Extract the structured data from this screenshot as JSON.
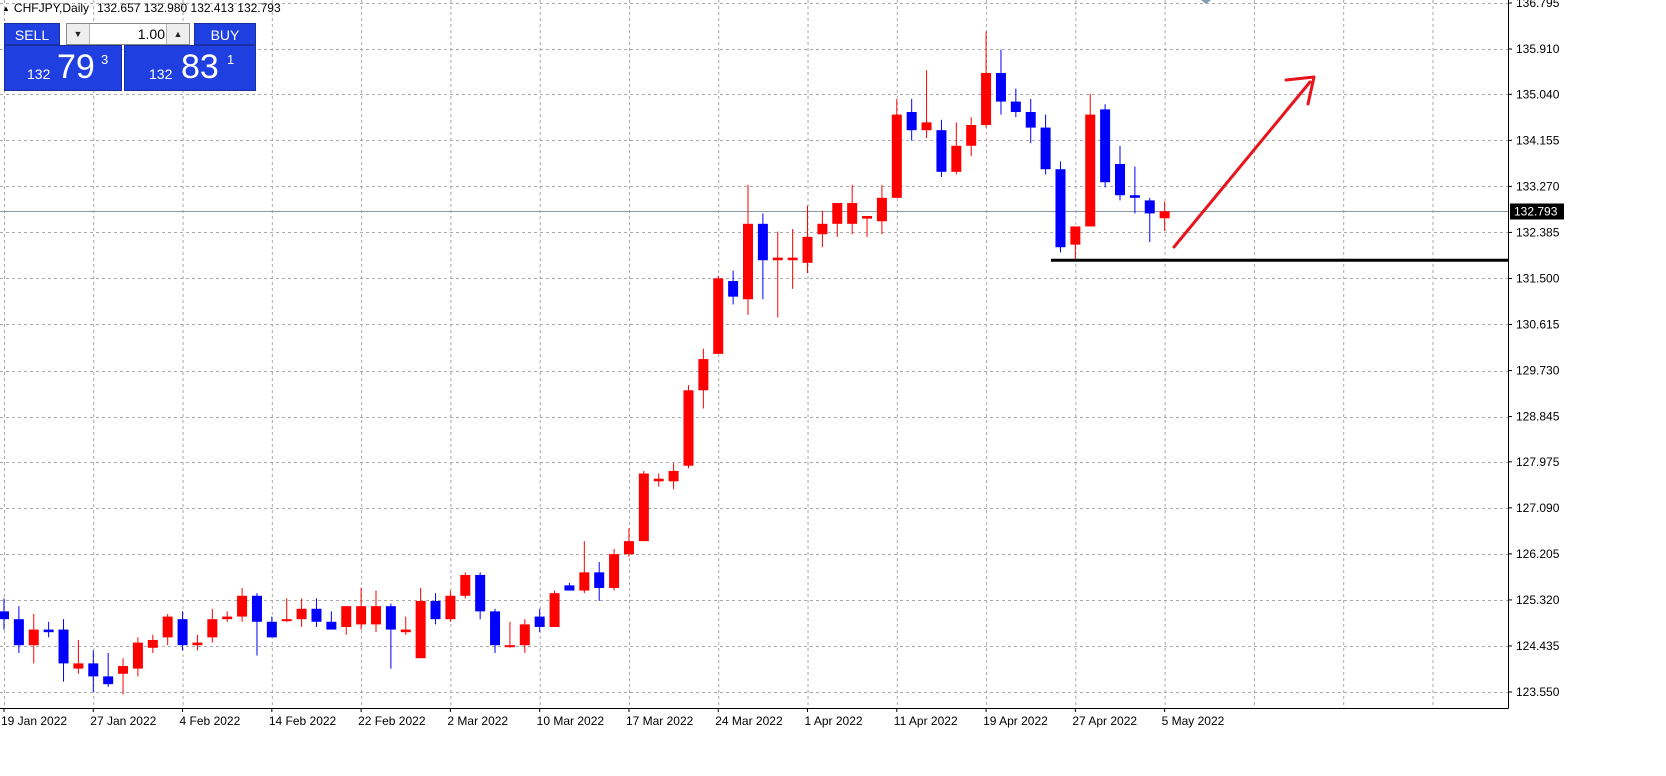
{
  "symbol_bar": {
    "symbol": "CHFJPY,Daily",
    "open": "132.657",
    "high": "132.980",
    "low": "132.413",
    "close": "132.793"
  },
  "trade_panel": {
    "sell_label": "SELL",
    "buy_label": "BUY",
    "lot_value": "1.00",
    "sell_price": {
      "prefix": "132",
      "big": "79",
      "sup": "3"
    },
    "buy_price": {
      "prefix": "132",
      "big": "83",
      "sup": "1"
    },
    "spinner_down_icon": "triangle-down",
    "spinner_up_icon": "triangle-up"
  },
  "colors": {
    "bull": "#ff0000",
    "bear": "#0000ff",
    "grid": "#a9a9a9",
    "trend_line": "#000000",
    "arrow": "#e8141c",
    "bid_line": "#8898a8",
    "price_label_bg": "#000000"
  },
  "chart_data": {
    "type": "candlestick",
    "title": "CHFJPY,Daily",
    "ylim": [
      123.1,
      136.795
    ],
    "y_ticks": [
      "123.550",
      "124.435",
      "125.320",
      "126.205",
      "127.090",
      "127.975",
      "128.845",
      "129.730",
      "130.615",
      "131.500",
      "132.385",
      "133.270",
      "134.155",
      "135.040",
      "135.910",
      "136.795"
    ],
    "x_labels": [
      {
        "label": "19 Jan 2022",
        "index": 0
      },
      {
        "label": "27 Jan 2022",
        "index": 6
      },
      {
        "label": "4 Feb 2022",
        "index": 12
      },
      {
        "label": "14 Feb 2022",
        "index": 18
      },
      {
        "label": "22 Feb 2022",
        "index": 24
      },
      {
        "label": "2 Mar 2022",
        "index": 30
      },
      {
        "label": "10 Mar 2022",
        "index": 36
      },
      {
        "label": "17 Mar 2022",
        "index": 42
      },
      {
        "label": "24 Mar 2022",
        "index": 48
      },
      {
        "label": "1 Apr 2022",
        "index": 54
      },
      {
        "label": "11 Apr 2022",
        "index": 60
      },
      {
        "label": "19 Apr 2022",
        "index": 66
      },
      {
        "label": "27 Apr 2022",
        "index": 72
      },
      {
        "label": "5 May 2022",
        "index": 78
      }
    ],
    "last_price": "132.793",
    "support_level": 131.85,
    "candles": [
      {
        "o": 125.1,
        "h": 125.35,
        "l": 124.75,
        "c": 124.95
      },
      {
        "o": 124.95,
        "h": 125.2,
        "l": 124.3,
        "c": 124.45
      },
      {
        "o": 124.45,
        "h": 125.05,
        "l": 124.1,
        "c": 124.75
      },
      {
        "o": 124.75,
        "h": 124.9,
        "l": 124.6,
        "c": 124.7
      },
      {
        "o": 124.75,
        "h": 124.95,
        "l": 123.75,
        "c": 124.1
      },
      {
        "o": 124.0,
        "h": 124.55,
        "l": 123.9,
        "c": 124.1
      },
      {
        "o": 124.1,
        "h": 124.35,
        "l": 123.55,
        "c": 123.85
      },
      {
        "o": 123.85,
        "h": 124.3,
        "l": 123.65,
        "c": 123.7
      },
      {
        "o": 123.9,
        "h": 124.2,
        "l": 123.5,
        "c": 124.05
      },
      {
        "o": 124.0,
        "h": 124.6,
        "l": 123.85,
        "c": 124.5
      },
      {
        "o": 124.4,
        "h": 124.65,
        "l": 124.3,
        "c": 124.55
      },
      {
        "o": 124.6,
        "h": 125.05,
        "l": 124.45,
        "c": 125.0
      },
      {
        "o": 124.95,
        "h": 125.1,
        "l": 124.35,
        "c": 124.45
      },
      {
        "o": 124.45,
        "h": 124.65,
        "l": 124.35,
        "c": 124.5
      },
      {
        "o": 124.6,
        "h": 125.15,
        "l": 124.5,
        "c": 124.95
      },
      {
        "o": 124.95,
        "h": 125.1,
        "l": 124.9,
        "c": 125.0
      },
      {
        "o": 125.0,
        "h": 125.55,
        "l": 124.9,
        "c": 125.4
      },
      {
        "o": 125.4,
        "h": 125.45,
        "l": 124.25,
        "c": 124.9
      },
      {
        "o": 124.9,
        "h": 125.0,
        "l": 124.6,
        "c": 124.6
      },
      {
        "o": 124.95,
        "h": 125.35,
        "l": 124.9,
        "c": 124.95
      },
      {
        "o": 124.95,
        "h": 125.35,
        "l": 124.8,
        "c": 125.15
      },
      {
        "o": 125.15,
        "h": 125.35,
        "l": 124.8,
        "c": 124.9
      },
      {
        "o": 124.9,
        "h": 125.1,
        "l": 124.75,
        "c": 124.75
      },
      {
        "o": 124.8,
        "h": 125.2,
        "l": 124.65,
        "c": 125.2
      },
      {
        "o": 124.85,
        "h": 125.55,
        "l": 124.75,
        "c": 125.2
      },
      {
        "o": 124.85,
        "h": 125.5,
        "l": 124.7,
        "c": 125.2
      },
      {
        "o": 125.2,
        "h": 125.25,
        "l": 124.0,
        "c": 124.75
      },
      {
        "o": 124.7,
        "h": 125.0,
        "l": 124.65,
        "c": 124.75
      },
      {
        "o": 124.2,
        "h": 125.55,
        "l": 124.2,
        "c": 125.3
      },
      {
        "o": 125.3,
        "h": 125.45,
        "l": 124.85,
        "c": 124.95
      },
      {
        "o": 124.95,
        "h": 125.5,
        "l": 124.9,
        "c": 125.4
      },
      {
        "o": 125.4,
        "h": 125.85,
        "l": 125.35,
        "c": 125.8
      },
      {
        "o": 125.8,
        "h": 125.85,
        "l": 124.95,
        "c": 125.1
      },
      {
        "o": 125.1,
        "h": 125.15,
        "l": 124.3,
        "c": 124.45
      },
      {
        "o": 124.45,
        "h": 124.9,
        "l": 124.4,
        "c": 124.45
      },
      {
        "o": 124.45,
        "h": 124.95,
        "l": 124.3,
        "c": 124.85
      },
      {
        "o": 125.0,
        "h": 125.15,
        "l": 124.7,
        "c": 124.8
      },
      {
        "o": 124.8,
        "h": 125.5,
        "l": 124.8,
        "c": 125.45
      },
      {
        "o": 125.6,
        "h": 125.65,
        "l": 125.5,
        "c": 125.5
      },
      {
        "o": 125.5,
        "h": 126.45,
        "l": 125.45,
        "c": 125.85
      },
      {
        "o": 125.85,
        "h": 126.05,
        "l": 125.3,
        "c": 125.55
      },
      {
        "o": 125.55,
        "h": 126.3,
        "l": 125.5,
        "c": 126.2
      },
      {
        "o": 126.2,
        "h": 126.7,
        "l": 126.15,
        "c": 126.45
      },
      {
        "o": 126.45,
        "h": 127.8,
        "l": 126.45,
        "c": 127.75
      },
      {
        "o": 127.6,
        "h": 127.75,
        "l": 127.5,
        "c": 127.65
      },
      {
        "o": 127.6,
        "h": 127.95,
        "l": 127.45,
        "c": 127.8
      },
      {
        "o": 127.9,
        "h": 129.45,
        "l": 127.85,
        "c": 129.35
      },
      {
        "o": 129.35,
        "h": 130.15,
        "l": 129.0,
        "c": 129.95
      },
      {
        "o": 130.05,
        "h": 131.55,
        "l": 130.05,
        "c": 131.5
      },
      {
        "o": 131.45,
        "h": 131.65,
        "l": 131.0,
        "c": 131.15
      },
      {
        "o": 131.1,
        "h": 133.3,
        "l": 130.8,
        "c": 132.55
      },
      {
        "o": 132.55,
        "h": 132.75,
        "l": 131.1,
        "c": 131.85
      },
      {
        "o": 131.85,
        "h": 132.4,
        "l": 130.75,
        "c": 131.9
      },
      {
        "o": 131.85,
        "h": 132.45,
        "l": 131.3,
        "c": 131.9
      },
      {
        "o": 131.8,
        "h": 132.9,
        "l": 131.6,
        "c": 132.3
      },
      {
        "o": 132.35,
        "h": 132.8,
        "l": 132.1,
        "c": 132.55
      },
      {
        "o": 132.55,
        "h": 132.9,
        "l": 132.3,
        "c": 132.95
      },
      {
        "o": 132.55,
        "h": 133.3,
        "l": 132.35,
        "c": 132.95
      },
      {
        "o": 132.65,
        "h": 132.7,
        "l": 132.3,
        "c": 132.7
      },
      {
        "o": 132.6,
        "h": 133.3,
        "l": 132.35,
        "c": 133.05
      },
      {
        "o": 133.05,
        "h": 134.95,
        "l": 133.05,
        "c": 134.65
      },
      {
        "o": 134.7,
        "h": 134.95,
        "l": 134.15,
        "c": 134.35
      },
      {
        "o": 134.35,
        "h": 135.5,
        "l": 134.2,
        "c": 134.5
      },
      {
        "o": 134.35,
        "h": 134.55,
        "l": 133.45,
        "c": 133.55
      },
      {
        "o": 133.55,
        "h": 134.5,
        "l": 133.5,
        "c": 134.05
      },
      {
        "o": 134.05,
        "h": 134.6,
        "l": 133.85,
        "c": 134.45
      },
      {
        "o": 134.45,
        "h": 136.25,
        "l": 134.4,
        "c": 135.45
      },
      {
        "o": 135.45,
        "h": 135.9,
        "l": 134.65,
        "c": 134.9
      },
      {
        "o": 134.9,
        "h": 135.15,
        "l": 134.6,
        "c": 134.7
      },
      {
        "o": 134.7,
        "h": 134.95,
        "l": 134.1,
        "c": 134.4
      },
      {
        "o": 134.4,
        "h": 134.65,
        "l": 133.5,
        "c": 133.6
      },
      {
        "o": 133.6,
        "h": 133.75,
        "l": 132.0,
        "c": 132.1
      },
      {
        "o": 132.15,
        "h": 132.5,
        "l": 131.85,
        "c": 132.5
      },
      {
        "o": 132.5,
        "h": 135.05,
        "l": 132.5,
        "c": 134.65
      },
      {
        "o": 134.75,
        "h": 134.85,
        "l": 133.25,
        "c": 133.35
      },
      {
        "o": 133.7,
        "h": 134.05,
        "l": 133.0,
        "c": 133.1
      },
      {
        "o": 133.1,
        "h": 133.65,
        "l": 132.75,
        "c": 133.05
      },
      {
        "o": 133.0,
        "h": 133.05,
        "l": 132.2,
        "c": 132.75
      },
      {
        "o": 132.657,
        "h": 132.98,
        "l": 132.413,
        "c": 132.793
      }
    ]
  }
}
